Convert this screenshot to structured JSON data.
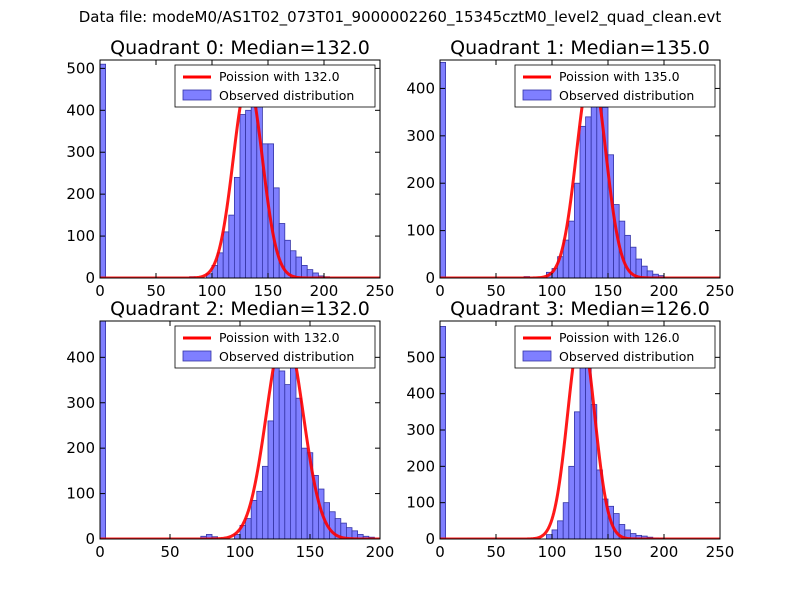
{
  "figure_title": "Data file: modeM0/AS1T02_073T01_9000002260_15345cztM0_level2_quad_clean.evt",
  "colors": {
    "poisson": "#ff0000",
    "bars_fill": "#7f7fff",
    "bars_stroke": "#3434a6",
    "axes": "#000000"
  },
  "chart_data": [
    {
      "type": "bar",
      "title": "Quadrant 0: Median=132.0",
      "xlim": [
        0,
        250
      ],
      "ylim": [
        0,
        520
      ],
      "xticks": [
        0,
        50,
        100,
        150,
        200,
        250
      ],
      "yticks": [
        0,
        100,
        200,
        300,
        400,
        500
      ],
      "legend": {
        "placement": "top-right",
        "entries": [
          "Poission with 132.0",
          "Observed distribution"
        ]
      },
      "bin_width": 5,
      "bins": [
        [
          0,
          510
        ],
        [
          80,
          3
        ],
        [
          95,
          10
        ],
        [
          100,
          30
        ],
        [
          105,
          60
        ],
        [
          110,
          110
        ],
        [
          115,
          150
        ],
        [
          120,
          240
        ],
        [
          125,
          390
        ],
        [
          130,
          400
        ],
        [
          135,
          480
        ],
        [
          140,
          460
        ],
        [
          145,
          320
        ],
        [
          150,
          320
        ],
        [
          155,
          215
        ],
        [
          160,
          130
        ],
        [
          165,
          90
        ],
        [
          170,
          65
        ],
        [
          175,
          50
        ],
        [
          180,
          30
        ],
        [
          185,
          20
        ],
        [
          190,
          12
        ],
        [
          195,
          5
        ],
        [
          200,
          3
        ]
      ],
      "poisson": {
        "label": "Poission with 132.0",
        "mean": 132.0,
        "peak": 470,
        "width": 13
      }
    },
    {
      "type": "bar",
      "title": "Quadrant 1: Median=135.0",
      "xlim": [
        0,
        250
      ],
      "ylim": [
        0,
        460
      ],
      "xticks": [
        0,
        50,
        100,
        150,
        200,
        250
      ],
      "yticks": [
        0,
        100,
        200,
        300,
        400
      ],
      "legend": {
        "placement": "top-right",
        "entries": [
          "Poission with 135.0",
          "Observed distribution"
        ]
      },
      "bin_width": 5,
      "bins": [
        [
          0,
          455
        ],
        [
          75,
          3
        ],
        [
          95,
          12
        ],
        [
          100,
          20
        ],
        [
          105,
          45
        ],
        [
          110,
          80
        ],
        [
          115,
          120
        ],
        [
          120,
          200
        ],
        [
          125,
          320
        ],
        [
          130,
          340
        ],
        [
          135,
          430
        ],
        [
          140,
          410
        ],
        [
          145,
          360
        ],
        [
          150,
          260
        ],
        [
          155,
          155
        ],
        [
          160,
          120
        ],
        [
          165,
          90
        ],
        [
          170,
          65
        ],
        [
          175,
          40
        ],
        [
          180,
          25
        ],
        [
          185,
          15
        ],
        [
          190,
          8
        ],
        [
          195,
          5
        ]
      ],
      "poisson": {
        "label": "Poission with 135.0",
        "mean": 135.0,
        "peak": 440,
        "width": 13
      }
    },
    {
      "type": "bar",
      "title": "Quadrant 2: Median=132.0",
      "xlim": [
        0,
        200
      ],
      "ylim": [
        0,
        480
      ],
      "xticks": [
        0,
        50,
        100,
        150,
        200
      ],
      "yticks": [
        0,
        100,
        200,
        300,
        400
      ],
      "legend": {
        "placement": "top-right",
        "entries": [
          "Poission with 132.0",
          "Observed distribution"
        ]
      },
      "bin_width": 4,
      "bins": [
        [
          0,
          480
        ],
        [
          72,
          6
        ],
        [
          76,
          10
        ],
        [
          80,
          5
        ],
        [
          96,
          10
        ],
        [
          100,
          30
        ],
        [
          104,
          45
        ],
        [
          108,
          85
        ],
        [
          112,
          105
        ],
        [
          116,
          160
        ],
        [
          120,
          260
        ],
        [
          124,
          450
        ],
        [
          128,
          370
        ],
        [
          132,
          340
        ],
        [
          136,
          380
        ],
        [
          140,
          310
        ],
        [
          144,
          200
        ],
        [
          148,
          190
        ],
        [
          152,
          140
        ],
        [
          156,
          110
        ],
        [
          160,
          80
        ],
        [
          164,
          60
        ],
        [
          168,
          45
        ],
        [
          172,
          35
        ],
        [
          176,
          25
        ],
        [
          180,
          18
        ],
        [
          184,
          10
        ],
        [
          188,
          6
        ],
        [
          192,
          4
        ]
      ],
      "poisson": {
        "label": "Poission with 132.0",
        "mean": 132.0,
        "peak": 460,
        "width": 13
      }
    },
    {
      "type": "bar",
      "title": "Quadrant 3: Median=126.0",
      "xlim": [
        0,
        250
      ],
      "ylim": [
        0,
        600
      ],
      "xticks": [
        0,
        50,
        100,
        150,
        200,
        250
      ],
      "yticks": [
        0,
        100,
        200,
        300,
        400,
        500
      ],
      "legend": {
        "placement": "top-right",
        "entries": [
          "Poission with 126.0",
          "Observed distribution"
        ]
      },
      "bin_width": 5,
      "bins": [
        [
          0,
          585
        ],
        [
          95,
          12
        ],
        [
          100,
          25
        ],
        [
          105,
          50
        ],
        [
          110,
          100
        ],
        [
          115,
          200
        ],
        [
          120,
          350
        ],
        [
          125,
          570
        ],
        [
          130,
          580
        ],
        [
          135,
          370
        ],
        [
          140,
          190
        ],
        [
          145,
          110
        ],
        [
          150,
          90
        ],
        [
          155,
          70
        ],
        [
          160,
          40
        ],
        [
          165,
          25
        ],
        [
          170,
          15
        ],
        [
          175,
          10
        ],
        [
          180,
          8
        ],
        [
          185,
          5
        ],
        [
          190,
          3
        ],
        [
          195,
          2
        ]
      ],
      "poisson": {
        "label": "Poission with 126.0",
        "mean": 126.0,
        "peak": 570,
        "width": 12
      }
    }
  ]
}
